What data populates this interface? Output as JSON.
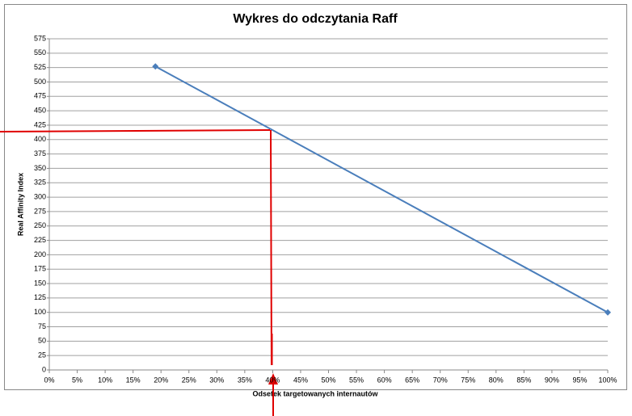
{
  "chart_data": {
    "type": "line",
    "title": "Wykres do odczytania Raff",
    "x_label": "Odsetek targetowanych internautów",
    "y_label": "Real Affinity Index",
    "x": [
      19,
      100
    ],
    "values": [
      527,
      100
    ],
    "color": "#4a7ebb",
    "xlim": [
      0,
      100
    ],
    "xticks": [
      {
        "value": 0,
        "label": "0%"
      },
      {
        "value": 5,
        "label": "5%"
      },
      {
        "value": 10,
        "label": "10%"
      },
      {
        "value": 15,
        "label": "15%"
      },
      {
        "value": 20,
        "label": "20%"
      },
      {
        "value": 25,
        "label": "25%"
      },
      {
        "value": 30,
        "label": "30%"
      },
      {
        "value": 35,
        "label": "35%"
      },
      {
        "value": 40,
        "label": "40%"
      },
      {
        "value": 45,
        "label": "45%"
      },
      {
        "value": 50,
        "label": "50%"
      },
      {
        "value": 55,
        "label": "55%"
      },
      {
        "value": 60,
        "label": "60%"
      },
      {
        "value": 65,
        "label": "65%"
      },
      {
        "value": 70,
        "label": "70%"
      },
      {
        "value": 75,
        "label": "75%"
      },
      {
        "value": 80,
        "label": "80%"
      },
      {
        "value": 85,
        "label": "85%"
      },
      {
        "value": 90,
        "label": "90%"
      },
      {
        "value": 95,
        "label": "95%"
      },
      {
        "value": 100,
        "label": "100%"
      }
    ],
    "ylim": [
      0,
      575
    ],
    "yticks": [
      0,
      25,
      50,
      75,
      100,
      125,
      150,
      175,
      200,
      225,
      250,
      275,
      300,
      325,
      350,
      375,
      400,
      425,
      450,
      475,
      500,
      525,
      550,
      575
    ],
    "grid": true
  }
}
